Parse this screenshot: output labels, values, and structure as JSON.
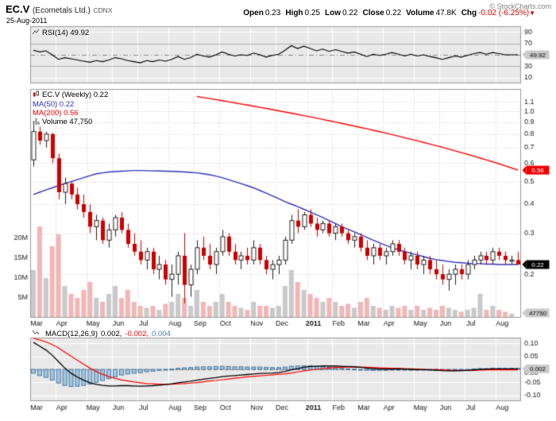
{
  "header": {
    "symbol": "EC.V",
    "company": "(Ecometals Ltd.)",
    "exchange": "CDNX",
    "date": "25-Aug-2011",
    "copyright": "© StockCharts.com",
    "quote": {
      "open_label": "Open",
      "open": "0.23",
      "high_label": "High",
      "high": "0.25",
      "low_label": "Low",
      "low": "0.22",
      "close_label": "Close",
      "close": "0.22",
      "volume_label": "Volume",
      "volume": "47.8K",
      "chg_label": "Chg",
      "chg": "-0.02 (-6.25%)",
      "chg_arrow": "▼"
    }
  },
  "legends": {
    "rsi": "RSI(14) 49.92",
    "price": "EC.V (Weekly) 0.22",
    "ma50": "MA(50) 0.22",
    "ma200": "MA(200) 0.56",
    "volume": "Volume 47,750",
    "macd": "MACD(12,26,9)",
    "macd_line_value": "0.002,",
    "macd_signal_value": "-0.002,",
    "macd_hist_value": "0.004"
  },
  "colors": {
    "up_outline": "#222222",
    "up_fill": "#ffffff",
    "down": "#cc0000",
    "ma50": "#3333bb",
    "ma200": "#ff0000",
    "signal": "#ff0000",
    "vol_up": "#c9c9c9",
    "vol_down": "#f2b6b6",
    "hist_fill": "#a3c6e0",
    "hist_stroke": "#48779f",
    "rsi_line": "#000000",
    "macd_line": "#000000",
    "panel_bg": "#e9e9e9",
    "grid": "#cfcfcf",
    "grid_white": "#ffffff",
    "border": "#999999",
    "tag_gray_bg": "#c9c9c9",
    "tag_red_bg": "#ee0000",
    "tag_black_bg": "#000000",
    "neg": "#cc0000",
    "axis_text": "#222222"
  },
  "x_axis": {
    "weeks": 78,
    "months": [
      {
        "label": "Mar",
        "week": 0
      },
      {
        "label": "Apr",
        "week": 4
      },
      {
        "label": "May",
        "week": 9
      },
      {
        "label": "Jun",
        "week": 13
      },
      {
        "label": "Jul",
        "week": 17
      },
      {
        "label": "Aug",
        "week": 22
      },
      {
        "label": "Sep",
        "week": 26
      },
      {
        "label": "Oct",
        "week": 30
      },
      {
        "label": "Nov",
        "week": 35
      },
      {
        "label": "Dec",
        "week": 39
      },
      {
        "label": "2011",
        "week": 44,
        "bold": true
      },
      {
        "label": "Feb",
        "week": 48
      },
      {
        "label": "Mar",
        "week": 52
      },
      {
        "label": "Apr",
        "week": 56
      },
      {
        "label": "May",
        "week": 61
      },
      {
        "label": "Jun",
        "week": 65
      },
      {
        "label": "Jul",
        "week": 69
      },
      {
        "label": "Aug",
        "week": 74
      }
    ]
  },
  "chart_data": [
    {
      "panel": "rsi",
      "type": "line",
      "label": "RSI(14)",
      "ylim": [
        0,
        100
      ],
      "yticks": [
        {
          "v": 90,
          "label": "90"
        },
        {
          "v": 70,
          "label": "70"
        },
        {
          "v": 30,
          "label": "30"
        },
        {
          "v": 10,
          "label": "10"
        }
      ],
      "hlines_solid": [
        70,
        30
      ],
      "hline_dashed": 50,
      "last": 49.92,
      "last_label": "49.92",
      "values": [
        58,
        55,
        57,
        50,
        42,
        45,
        43,
        41,
        39,
        37,
        40,
        38,
        41,
        45,
        43,
        40,
        38,
        36,
        40,
        38,
        41,
        39,
        42,
        47,
        42,
        45,
        51,
        48,
        46,
        50,
        55,
        51,
        48,
        50,
        49,
        53,
        50,
        46,
        49,
        51,
        58,
        66,
        61,
        65,
        61,
        57,
        60,
        56,
        59,
        56,
        53,
        55,
        51,
        47,
        51,
        49,
        51,
        54,
        51,
        48,
        51,
        48,
        50,
        47,
        45,
        42,
        45,
        48,
        46,
        49,
        52,
        54,
        51,
        54,
        52,
        50,
        50,
        49.92
      ]
    },
    {
      "panel": "price",
      "type": "candlestick",
      "label": "EC.V (Weekly)",
      "scale": "log",
      "ylim": [
        0.13,
        1.25
      ],
      "yticks": [
        {
          "v": 1.1,
          "label": "1.1"
        },
        {
          "v": 1.0,
          "label": "1.0"
        },
        {
          "v": 0.9,
          "label": "0.9"
        },
        {
          "v": 0.8,
          "label": "0.8"
        },
        {
          "v": 0.7,
          "label": "0.7"
        },
        {
          "v": 0.6,
          "label": "0.6"
        },
        {
          "v": 0.5,
          "label": "0.5"
        },
        {
          "v": 0.4,
          "label": "0.4"
        },
        {
          "v": 0.3,
          "label": "0.3"
        },
        {
          "v": 0.2,
          "label": "0.2"
        }
      ],
      "close_tag": {
        "v": 0.22,
        "label": "0.22"
      },
      "ma200_tag": {
        "v": 0.56,
        "label": "0.56"
      },
      "volume_tag": {
        "label": "47750"
      },
      "volume_yticks": [
        {
          "v": 20,
          "label": "20M"
        },
        {
          "v": 15,
          "label": "15M"
        },
        {
          "v": 10,
          "label": "10M"
        },
        {
          "v": 5,
          "label": "5M"
        }
      ],
      "candles": [
        [
          0.62,
          0.88,
          0.58,
          0.82
        ],
        [
          0.82,
          0.86,
          0.72,
          0.75
        ],
        [
          0.75,
          0.82,
          0.7,
          0.8
        ],
        [
          0.8,
          0.81,
          0.6,
          0.63
        ],
        [
          0.63,
          0.66,
          0.42,
          0.45
        ],
        [
          0.45,
          0.52,
          0.4,
          0.49
        ],
        [
          0.49,
          0.5,
          0.42,
          0.44
        ],
        [
          0.44,
          0.47,
          0.38,
          0.4
        ],
        [
          0.4,
          0.44,
          0.35,
          0.37
        ],
        [
          0.37,
          0.4,
          0.3,
          0.32
        ],
        [
          0.32,
          0.36,
          0.28,
          0.34
        ],
        [
          0.34,
          0.35,
          0.27,
          0.28
        ],
        [
          0.28,
          0.33,
          0.26,
          0.31
        ],
        [
          0.31,
          0.36,
          0.29,
          0.35
        ],
        [
          0.35,
          0.37,
          0.3,
          0.31
        ],
        [
          0.31,
          0.33,
          0.26,
          0.27
        ],
        [
          0.27,
          0.3,
          0.24,
          0.25
        ],
        [
          0.25,
          0.28,
          0.22,
          0.23
        ],
        [
          0.23,
          0.26,
          0.21,
          0.25
        ],
        [
          0.25,
          0.26,
          0.2,
          0.21
        ],
        [
          0.21,
          0.24,
          0.19,
          0.22
        ],
        [
          0.22,
          0.23,
          0.18,
          0.19
        ],
        [
          0.19,
          0.22,
          0.16,
          0.2
        ],
        [
          0.2,
          0.25,
          0.18,
          0.24
        ],
        [
          0.24,
          0.3,
          0.15,
          0.18
        ],
        [
          0.18,
          0.22,
          0.16,
          0.21
        ],
        [
          0.21,
          0.28,
          0.2,
          0.26
        ],
        [
          0.26,
          0.29,
          0.23,
          0.24
        ],
        [
          0.24,
          0.27,
          0.21,
          0.22
        ],
        [
          0.22,
          0.26,
          0.2,
          0.25
        ],
        [
          0.25,
          0.31,
          0.24,
          0.29
        ],
        [
          0.29,
          0.3,
          0.24,
          0.25
        ],
        [
          0.25,
          0.27,
          0.22,
          0.23
        ],
        [
          0.23,
          0.25,
          0.21,
          0.24
        ],
        [
          0.24,
          0.26,
          0.22,
          0.23
        ],
        [
          0.23,
          0.28,
          0.22,
          0.26
        ],
        [
          0.26,
          0.27,
          0.22,
          0.23
        ],
        [
          0.23,
          0.24,
          0.2,
          0.21
        ],
        [
          0.21,
          0.23,
          0.19,
          0.22
        ],
        [
          0.22,
          0.24,
          0.2,
          0.23
        ],
        [
          0.23,
          0.29,
          0.22,
          0.28
        ],
        [
          0.28,
          0.36,
          0.27,
          0.34
        ],
        [
          0.34,
          0.38,
          0.3,
          0.32
        ],
        [
          0.32,
          0.37,
          0.31,
          0.36
        ],
        [
          0.36,
          0.38,
          0.32,
          0.33
        ],
        [
          0.33,
          0.35,
          0.29,
          0.31
        ],
        [
          0.31,
          0.34,
          0.3,
          0.33
        ],
        [
          0.33,
          0.34,
          0.29,
          0.3
        ],
        [
          0.3,
          0.33,
          0.28,
          0.32
        ],
        [
          0.32,
          0.33,
          0.29,
          0.3
        ],
        [
          0.3,
          0.31,
          0.27,
          0.28
        ],
        [
          0.28,
          0.3,
          0.26,
          0.29
        ],
        [
          0.29,
          0.3,
          0.25,
          0.26
        ],
        [
          0.26,
          0.28,
          0.23,
          0.24
        ],
        [
          0.24,
          0.27,
          0.22,
          0.26
        ],
        [
          0.26,
          0.27,
          0.23,
          0.24
        ],
        [
          0.24,
          0.26,
          0.22,
          0.25
        ],
        [
          0.25,
          0.28,
          0.24,
          0.27
        ],
        [
          0.27,
          0.28,
          0.24,
          0.25
        ],
        [
          0.25,
          0.26,
          0.22,
          0.23
        ],
        [
          0.23,
          0.25,
          0.21,
          0.24
        ],
        [
          0.24,
          0.25,
          0.21,
          0.22
        ],
        [
          0.22,
          0.24,
          0.2,
          0.23
        ],
        [
          0.23,
          0.24,
          0.2,
          0.21
        ],
        [
          0.21,
          0.23,
          0.19,
          0.2
        ],
        [
          0.2,
          0.22,
          0.18,
          0.19
        ],
        [
          0.19,
          0.21,
          0.17,
          0.2
        ],
        [
          0.2,
          0.22,
          0.18,
          0.21
        ],
        [
          0.21,
          0.22,
          0.19,
          0.2
        ],
        [
          0.2,
          0.23,
          0.19,
          0.22
        ],
        [
          0.22,
          0.24,
          0.21,
          0.23
        ],
        [
          0.23,
          0.25,
          0.22,
          0.24
        ],
        [
          0.24,
          0.25,
          0.22,
          0.23
        ],
        [
          0.23,
          0.26,
          0.22,
          0.25
        ],
        [
          0.25,
          0.26,
          0.23,
          0.24
        ],
        [
          0.24,
          0.25,
          0.22,
          0.23
        ],
        [
          0.23,
          0.24,
          0.22,
          0.23
        ],
        [
          0.23,
          0.25,
          0.22,
          0.22
        ]
      ],
      "ma50": [
        0.44,
        0.45,
        0.46,
        0.47,
        0.48,
        0.49,
        0.5,
        0.51,
        0.52,
        0.53,
        0.54,
        0.545,
        0.55,
        0.552,
        0.554,
        0.556,
        0.558,
        0.558,
        0.557,
        0.556,
        0.555,
        0.554,
        0.553,
        0.552,
        0.55,
        0.548,
        0.545,
        0.54,
        0.535,
        0.528,
        0.52,
        0.51,
        0.5,
        0.49,
        0.48,
        0.47,
        0.458,
        0.446,
        0.434,
        0.422,
        0.41,
        0.4,
        0.39,
        0.38,
        0.37,
        0.36,
        0.35,
        0.34,
        0.33,
        0.32,
        0.312,
        0.304,
        0.296,
        0.288,
        0.28,
        0.273,
        0.266,
        0.26,
        0.255,
        0.25,
        0.246,
        0.242,
        0.238,
        0.234,
        0.231,
        0.229,
        0.227,
        0.225,
        0.224,
        0.223,
        0.222,
        0.222,
        0.221,
        0.221,
        0.22,
        0.22,
        0.22,
        0.22
      ],
      "ma200": [
        null,
        null,
        null,
        null,
        null,
        null,
        null,
        null,
        null,
        null,
        null,
        null,
        null,
        null,
        null,
        null,
        null,
        null,
        null,
        null,
        null,
        null,
        null,
        null,
        null,
        null,
        1.16,
        1.148,
        1.136,
        1.125,
        1.113,
        1.101,
        1.089,
        1.078,
        1.066,
        1.054,
        1.042,
        1.031,
        1.019,
        1.007,
        0.995,
        0.984,
        0.972,
        0.96,
        0.948,
        0.937,
        0.925,
        0.913,
        0.901,
        0.89,
        0.878,
        0.866,
        0.854,
        0.843,
        0.831,
        0.819,
        0.807,
        0.796,
        0.784,
        0.772,
        0.76,
        0.749,
        0.737,
        0.725,
        0.713,
        0.702,
        0.69,
        0.678,
        0.666,
        0.655,
        0.643,
        0.631,
        0.619,
        0.608,
        0.596,
        0.584,
        0.572,
        0.56
      ],
      "volume_m": [
        12,
        23,
        10,
        18,
        21,
        8,
        6,
        5,
        7,
        9,
        5,
        4,
        6,
        8,
        5,
        7,
        4,
        3,
        2.5,
        3,
        2,
        3.5,
        4,
        6,
        5,
        3,
        7,
        4,
        3,
        4,
        6,
        4,
        3,
        2.5,
        2,
        4,
        3,
        3,
        2.5,
        3,
        8,
        12,
        9,
        7,
        6,
        5,
        4,
        5,
        4,
        3,
        3.5,
        2.5,
        4,
        5,
        3,
        2.5,
        2,
        3,
        2.5,
        3,
        2,
        3,
        2,
        2.5,
        2,
        3,
        2.5,
        2,
        1.5,
        2,
        2.5,
        6,
        2,
        3,
        2,
        1.5,
        1,
        0.05
      ]
    },
    {
      "panel": "macd",
      "type": "line+histogram",
      "label": "MACD(12,26,9)",
      "ylim": [
        -0.123,
        0.123
      ],
      "yticks": [
        {
          "v": 0.1,
          "label": "0.10"
        },
        {
          "v": 0.05,
          "label": "0.05"
        },
        {
          "v": 0,
          "label": "0.00"
        },
        {
          "v": -0.05,
          "label": "-0.05"
        },
        {
          "v": -0.1,
          "label": "-0.10"
        }
      ],
      "tag": {
        "v": 0.002,
        "label": "0.002"
      },
      "macd": [
        0.105,
        0.09,
        0.075,
        0.055,
        0.03,
        0.005,
        -0.015,
        -0.03,
        -0.042,
        -0.052,
        -0.058,
        -0.062,
        -0.064,
        -0.064,
        -0.063,
        -0.063,
        -0.064,
        -0.065,
        -0.064,
        -0.063,
        -0.061,
        -0.059,
        -0.056,
        -0.052,
        -0.049,
        -0.046,
        -0.042,
        -0.038,
        -0.035,
        -0.032,
        -0.028,
        -0.026,
        -0.024,
        -0.022,
        -0.02,
        -0.018,
        -0.016,
        -0.015,
        -0.014,
        -0.012,
        -0.008,
        -0.002,
        0.003,
        0.008,
        0.011,
        0.012,
        0.013,
        0.013,
        0.013,
        0.012,
        0.011,
        0.01,
        0.008,
        0.005,
        0.003,
        0.002,
        0.001,
        0.001,
        0.002,
        0.001,
        0,
        -0.001,
        -0.001,
        -0.002,
        -0.003,
        -0.005,
        -0.006,
        -0.006,
        -0.005,
        -0.004,
        -0.002,
        0,
        0.001,
        0.002,
        0.002,
        0.002,
        0.002,
        0.002
      ],
      "signal": [
        0.12,
        0.114,
        0.106,
        0.096,
        0.083,
        0.067,
        0.051,
        0.035,
        0.02,
        0.005,
        -0.008,
        -0.019,
        -0.028,
        -0.035,
        -0.041,
        -0.045,
        -0.049,
        -0.052,
        -0.055,
        -0.056,
        -0.057,
        -0.058,
        -0.057,
        -0.056,
        -0.055,
        -0.053,
        -0.051,
        -0.048,
        -0.045,
        -0.043,
        -0.04,
        -0.037,
        -0.034,
        -0.032,
        -0.029,
        -0.027,
        -0.025,
        -0.023,
        -0.021,
        -0.019,
        -0.017,
        -0.014,
        -0.01,
        -0.006,
        -0.003,
        0,
        0.003,
        0.005,
        0.007,
        0.008,
        0.009,
        0.009,
        0.009,
        0.008,
        0.007,
        0.006,
        0.005,
        0.004,
        0.004,
        0.003,
        0.002,
        0.001,
        0,
        -0.001,
        -0.001,
        -0.002,
        -0.003,
        -0.004,
        -0.004,
        -0.004,
        -0.004,
        -0.003,
        -0.002,
        -0.002,
        -0.002,
        -0.002,
        -0.002,
        -0.002
      ]
    }
  ]
}
